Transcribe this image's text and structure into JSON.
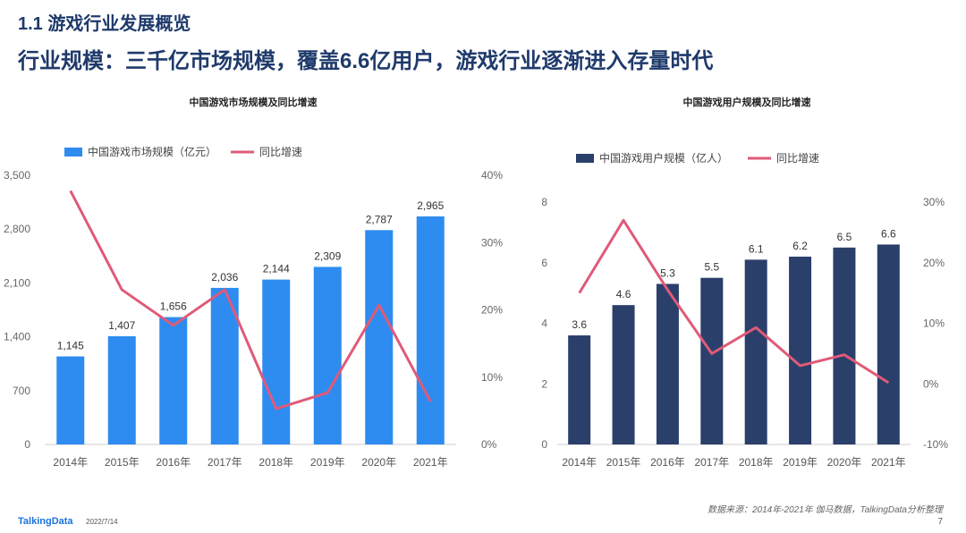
{
  "header": {
    "section_title": "1.1 游戏行业发展概览",
    "headline": "行业规模：三千亿市场规模，覆盖6.6亿用户，游戏行业逐渐进入存量时代"
  },
  "chart_data": [
    {
      "type": "bar",
      "title": "中国游戏市场规模及同比增速",
      "categories": [
        "2014年",
        "2015年",
        "2016年",
        "2017年",
        "2018年",
        "2019年",
        "2020年",
        "2021年"
      ],
      "series": [
        {
          "name": "中国游戏市场规模（亿元）",
          "type": "bar",
          "axis": "left",
          "values": [
            1145,
            1407,
            1656,
            2036,
            2144,
            2309,
            2787,
            2965
          ],
          "labels": [
            "1,145",
            "1,407",
            "1,656",
            "2,036",
            "2,144",
            "2,309",
            "2,787",
            "2,965"
          ]
        },
        {
          "name": "同比增速",
          "type": "line",
          "axis": "right",
          "values": [
            37.7,
            23.0,
            17.7,
            23.0,
            5.3,
            7.7,
            20.7,
            6.4
          ]
        }
      ],
      "ylim": [
        0,
        3500
      ],
      "yticks": [
        "0",
        "700",
        "1,400",
        "2,100",
        "2,800",
        "3,500"
      ],
      "y2lim": [
        0,
        40
      ],
      "y2ticks": [
        "0%",
        "10%",
        "20%",
        "30%",
        "40%"
      ],
      "colors": {
        "bar": "#2e8cf0",
        "line": "#e05a78"
      }
    },
    {
      "type": "bar",
      "title": "中国游戏用户规模及同比增速",
      "categories": [
        "2014年",
        "2015年",
        "2016年",
        "2017年",
        "2018年",
        "2019年",
        "2020年",
        "2021年"
      ],
      "series": [
        {
          "name": "中国游戏用户规模（亿人）",
          "type": "bar",
          "axis": "left",
          "values": [
            3.6,
            4.6,
            5.3,
            5.5,
            6.1,
            6.2,
            6.5,
            6.6
          ],
          "labels": [
            "3.6",
            "4.6",
            "5.3",
            "5.5",
            "6.1",
            "6.2",
            "6.5",
            "6.6"
          ]
        },
        {
          "name": "同比增速",
          "type": "line",
          "axis": "right",
          "values": [
            15.0,
            27.0,
            15.5,
            5.0,
            9.3,
            3.0,
            4.8,
            0.2
          ]
        }
      ],
      "ylim": [
        0,
        8
      ],
      "yticks": [
        "0",
        "2",
        "4",
        "6",
        "8"
      ],
      "y2lim": [
        -10,
        30
      ],
      "y2ticks": [
        "-10%",
        "0%",
        "10%",
        "20%",
        "30%"
      ],
      "colors": {
        "bar": "#2b3f6b",
        "line": "#e05a78"
      }
    }
  ],
  "footer": {
    "logo": "TalkingData",
    "date": "2022/7/14",
    "source": "数据来源：2014年-2021年 伽马数据，TalkingData分析整理",
    "page": "7"
  }
}
